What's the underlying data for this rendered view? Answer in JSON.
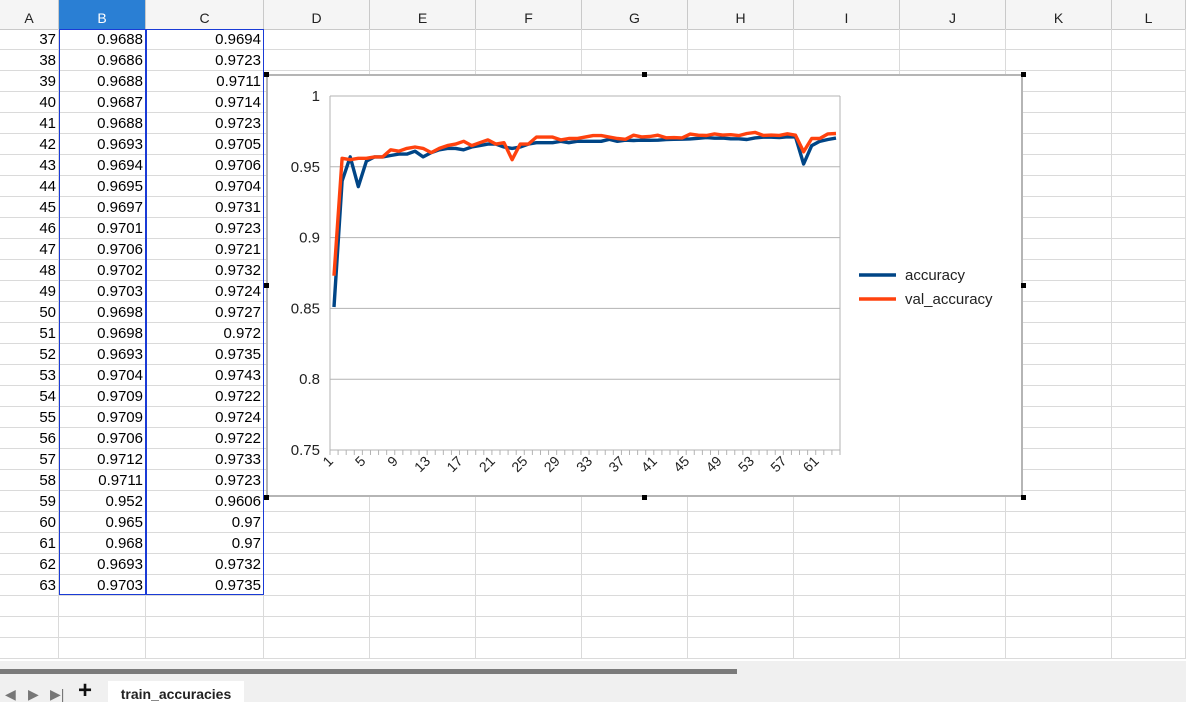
{
  "sheet": {
    "columns": [
      "A",
      "B",
      "C",
      "D",
      "E",
      "F",
      "G",
      "H",
      "I",
      "J",
      "K",
      "L"
    ],
    "selected_column": "B",
    "rows": [
      {
        "a": "37",
        "b": "0.9688",
        "c": "0.9694"
      },
      {
        "a": "38",
        "b": "0.9686",
        "c": "0.9723"
      },
      {
        "a": "39",
        "b": "0.9688",
        "c": "0.9711"
      },
      {
        "a": "40",
        "b": "0.9687",
        "c": "0.9714"
      },
      {
        "a": "41",
        "b": "0.9688",
        "c": "0.9723"
      },
      {
        "a": "42",
        "b": "0.9693",
        "c": "0.9705"
      },
      {
        "a": "43",
        "b": "0.9694",
        "c": "0.9706"
      },
      {
        "a": "44",
        "b": "0.9695",
        "c": "0.9704"
      },
      {
        "a": "45",
        "b": "0.9697",
        "c": "0.9731"
      },
      {
        "a": "46",
        "b": "0.9701",
        "c": "0.9723"
      },
      {
        "a": "47",
        "b": "0.9706",
        "c": "0.9721"
      },
      {
        "a": "48",
        "b": "0.9702",
        "c": "0.9732"
      },
      {
        "a": "49",
        "b": "0.9703",
        "c": "0.9724"
      },
      {
        "a": "50",
        "b": "0.9698",
        "c": "0.9727"
      },
      {
        "a": "51",
        "b": "0.9698",
        "c": "0.972"
      },
      {
        "a": "52",
        "b": "0.9693",
        "c": "0.9735"
      },
      {
        "a": "53",
        "b": "0.9704",
        "c": "0.9743"
      },
      {
        "a": "54",
        "b": "0.9709",
        "c": "0.9722"
      },
      {
        "a": "55",
        "b": "0.9709",
        "c": "0.9724"
      },
      {
        "a": "56",
        "b": "0.9706",
        "c": "0.9722"
      },
      {
        "a": "57",
        "b": "0.9712",
        "c": "0.9733"
      },
      {
        "a": "58",
        "b": "0.9711",
        "c": "0.9723"
      },
      {
        "a": "59",
        "b": "0.952",
        "c": "0.9606"
      },
      {
        "a": "60",
        "b": "0.965",
        "c": "0.97"
      },
      {
        "a": "61",
        "b": "0.968",
        "c": "0.97"
      },
      {
        "a": "62",
        "b": "0.9693",
        "c": "0.9732"
      },
      {
        "a": "63",
        "b": "0.9703",
        "c": "0.9735"
      }
    ]
  },
  "sheet_tab": {
    "label": "train_accuracies"
  },
  "icons": {
    "add": "plus-icon",
    "nav": [
      "first-sheet-icon",
      "prev-sheet-icon",
      "next-sheet-icon",
      "last-sheet-icon"
    ]
  },
  "colors": {
    "accuracy": "#004586",
    "val_accuracy": "#ff420e",
    "selected_header": "#2a7fd4",
    "selection_border": "#1a3bd6"
  },
  "chart_data": {
    "type": "line",
    "x": [
      1,
      2,
      3,
      4,
      5,
      6,
      7,
      8,
      9,
      10,
      11,
      12,
      13,
      14,
      15,
      16,
      17,
      18,
      19,
      20,
      21,
      22,
      23,
      24,
      25,
      26,
      27,
      28,
      29,
      30,
      31,
      32,
      33,
      34,
      35,
      36,
      37,
      38,
      39,
      40,
      41,
      42,
      43,
      44,
      45,
      46,
      47,
      48,
      49,
      50,
      51,
      52,
      53,
      54,
      55,
      56,
      57,
      58,
      59,
      60,
      61,
      62,
      63
    ],
    "xticks": [
      "1",
      "5",
      "9",
      "13",
      "17",
      "21",
      "25",
      "29",
      "33",
      "37",
      "41",
      "45",
      "49",
      "53",
      "57",
      "61"
    ],
    "ylim": [
      0.75,
      1
    ],
    "yticks": [
      "0.75",
      "0.8",
      "0.85",
      "0.9",
      "0.95",
      "1"
    ],
    "grid": true,
    "legend_position": "right",
    "series": [
      {
        "name": "accuracy",
        "color": "#004586",
        "values": [
          0.851,
          0.94,
          0.957,
          0.936,
          0.954,
          0.957,
          0.957,
          0.958,
          0.959,
          0.959,
          0.961,
          0.957,
          0.96,
          0.962,
          0.963,
          0.963,
          0.962,
          0.964,
          0.965,
          0.966,
          0.966,
          0.964,
          0.963,
          0.964,
          0.966,
          0.967,
          0.967,
          0.967,
          0.968,
          0.967,
          0.968,
          0.968,
          0.968,
          0.968,
          0.9694,
          0.968,
          0.9688,
          0.9686,
          0.9688,
          0.9687,
          0.9688,
          0.9693,
          0.9694,
          0.9695,
          0.9697,
          0.9701,
          0.9706,
          0.9702,
          0.9703,
          0.9698,
          0.9698,
          0.9693,
          0.9704,
          0.9709,
          0.9709,
          0.9706,
          0.9712,
          0.9711,
          0.952,
          0.965,
          0.968,
          0.9693,
          0.9703
        ]
      },
      {
        "name": "val_accuracy",
        "color": "#ff420e",
        "values": [
          0.873,
          0.956,
          0.955,
          0.956,
          0.956,
          0.957,
          0.957,
          0.962,
          0.961,
          0.963,
          0.964,
          0.963,
          0.96,
          0.963,
          0.965,
          0.966,
          0.968,
          0.965,
          0.967,
          0.969,
          0.966,
          0.967,
          0.955,
          0.966,
          0.966,
          0.971,
          0.971,
          0.971,
          0.969,
          0.97,
          0.97,
          0.971,
          0.972,
          0.972,
          0.971,
          0.97,
          0.9694,
          0.9723,
          0.9711,
          0.9714,
          0.9723,
          0.9705,
          0.9706,
          0.9704,
          0.9731,
          0.9723,
          0.9721,
          0.9732,
          0.9724,
          0.9727,
          0.972,
          0.9735,
          0.9743,
          0.9722,
          0.9724,
          0.9722,
          0.9733,
          0.9723,
          0.9606,
          0.97,
          0.97,
          0.9732,
          0.9735
        ]
      }
    ]
  }
}
